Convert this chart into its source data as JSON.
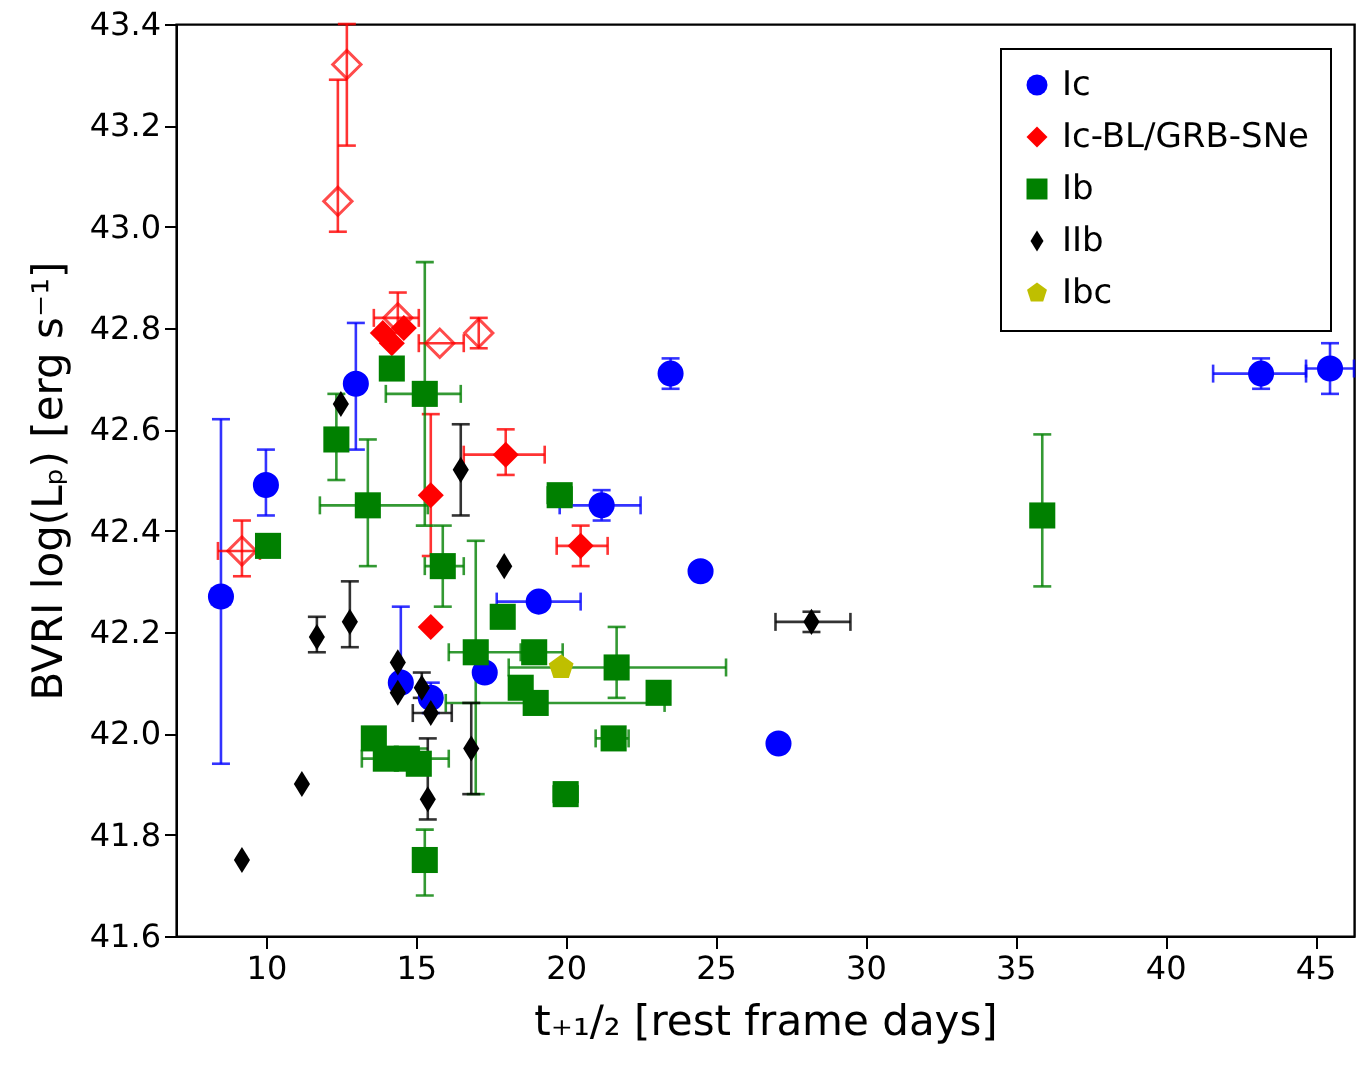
{
  "chart_data": {
    "type": "scatter",
    "xlabel": "t₊₁/₂ [rest frame days]",
    "ylabel": "BVRI log(Lₚ) [erg s⁻¹]",
    "xlim": [
      7,
      46.3
    ],
    "xticks": [
      10,
      15,
      20,
      25,
      30,
      35,
      40,
      45
    ],
    "ylim": [
      41.6,
      43.4
    ],
    "yticks": [
      41.6,
      41.8,
      {
        "value": 42,
        "label": "42.0"
      },
      42.2,
      42.4,
      42.6,
      42.8,
      {
        "value": 43,
        "label": "43.0"
      },
      43.2,
      43.4
    ],
    "grid": false,
    "legend": "top right",
    "series": [
      {
        "name": "Ic",
        "color": "#0000ff",
        "marker": "circle",
        "x": [
          8.5,
          10.0,
          13.0,
          14.5,
          15.5,
          17.3,
          19.1,
          21.2,
          23.5,
          24.5,
          27.1,
          43.2,
          45.5
        ],
        "values": [
          42.27,
          42.49,
          42.69,
          42.1,
          42.07,
          42.12,
          42.26,
          42.45,
          42.71,
          42.32,
          41.98,
          42.71,
          42.72
        ],
        "errors": [
          [
            41.94,
            42.62
          ],
          [
            42.43,
            42.56
          ],
          [
            42.56,
            42.81
          ],
          [
            42.1,
            42.25
          ],
          [
            42.04,
            42.1
          ],
          null,
          null,
          [
            42.42,
            42.48
          ],
          [
            42.68,
            42.74
          ],
          null,
          null,
          [
            42.68,
            42.74
          ],
          [
            42.67,
            42.77
          ]
        ],
        "xerrors": [
          [
            8.2,
            8.8
          ],
          null,
          null,
          null,
          null,
          null,
          [
            17.7,
            20.5
          ],
          [
            19.8,
            22.5
          ],
          null,
          null,
          null,
          [
            41.6,
            44.7
          ],
          [
            44.7,
            46.3
          ]
        ]
      },
      {
        "name": "Ic-BL/GRB-SNe",
        "color": "#ff0000",
        "marker": "diamond",
        "x": [
          13.9,
          14.6,
          14.2,
          15.5,
          18.0,
          20.5,
          15.5
        ],
        "values": [
          42.79,
          42.8,
          42.77,
          42.47,
          42.55,
          42.37,
          42.21
        ],
        "errors": [
          null,
          null,
          null,
          [
            42.35,
            42.63
          ],
          [
            42.51,
            42.6
          ],
          [
            42.33,
            42.41
          ],
          null
        ],
        "xerrors": [
          null,
          null,
          null,
          null,
          [
            16.6,
            19.3
          ],
          [
            19.7,
            21.4
          ],
          null
        ]
      },
      {
        "color": "#ff0000",
        "marker": "diamond",
        "x": [
          12.7,
          12.4,
          14.4,
          15.8,
          17.1,
          9.2
        ],
        "values": [
          43.32,
          43.05,
          42.82,
          42.77,
          42.79,
          42.36
        ],
        "errors": [
          [
            43.16,
            43.4
          ],
          [
            42.99,
            43.29
          ],
          [
            42.79,
            42.87
          ],
          null,
          [
            42.76,
            42.82
          ],
          [
            42.31,
            42.42
          ]
        ],
        "xerrors": [
          null,
          null,
          [
            13.6,
            15.1
          ],
          [
            15.1,
            16.6
          ],
          null,
          [
            8.4,
            9.8
          ]
        ]
      },
      {
        "name": "Ib",
        "color": "#008000",
        "marker": "square",
        "x": [
          12.35,
          14.2,
          15.3,
          13.4,
          10.07,
          15.9,
          17.0,
          17.9,
          18.95,
          18.5,
          19.0,
          21.7,
          23.1,
          21.6,
          20.0,
          19.8,
          13.6,
          14.0,
          14.7,
          15.1,
          15.3,
          35.9
        ],
        "values": [
          42.58,
          42.72,
          42.67,
          42.45,
          42.37,
          42.33,
          42.16,
          42.23,
          42.16,
          42.09,
          42.06,
          42.13,
          42.08,
          41.99,
          41.88,
          42.47,
          41.99,
          41.95,
          41.95,
          41.94,
          41.75,
          42.43
        ],
        "errors": [
          [
            42.5,
            42.67
          ],
          null,
          [
            42.41,
            42.93
          ],
          [
            42.33,
            42.58
          ],
          null,
          [
            42.25,
            42.41
          ],
          [
            41.88,
            42.38
          ],
          null,
          null,
          null,
          null,
          [
            42.07,
            42.21
          ],
          null,
          null,
          null,
          null,
          null,
          null,
          null,
          [
            41.92,
            41.97
          ],
          [
            41.68,
            41.81
          ],
          [
            42.29,
            42.59
          ]
        ],
        "xerrors": [
          null,
          null,
          [
            14.0,
            16.5
          ],
          [
            11.8,
            15.4
          ],
          null,
          [
            15.3,
            16.6
          ],
          [
            16.1,
            18.7
          ],
          null,
          [
            18.5,
            19.9
          ],
          null,
          [
            16.0,
            23.3
          ],
          [
            18.1,
            25.35
          ],
          null,
          [
            21.0,
            22.1
          ],
          [
            19.6,
            20.4
          ],
          [
            19.4,
            20.2
          ],
          null,
          [
            13.2,
            16.1
          ],
          null,
          null,
          null,
          null
        ]
      },
      {
        "name": "IIb",
        "color": "#000000",
        "marker": "diamond",
        "x": [
          9.2,
          11.2,
          11.7,
          12.8,
          12.5,
          14.4,
          14.4,
          15.2,
          15.5,
          15.4,
          16.85,
          16.5,
          17.95,
          28.2
        ],
        "values": [
          41.75,
          41.9,
          42.19,
          42.22,
          42.65,
          42.14,
          42.08,
          42.09,
          42.04,
          41.87,
          41.97,
          42.52,
          42.33,
          42.22
        ],
        "errors": [
          null,
          null,
          [
            42.16,
            42.23
          ],
          [
            42.17,
            42.3
          ],
          null,
          null,
          null,
          [
            42.07,
            42.12
          ],
          null,
          [
            41.83,
            41.99
          ],
          [
            41.88,
            42.06
          ],
          [
            42.43,
            42.61
          ],
          null,
          [
            42.2,
            42.24
          ]
        ],
        "xerrors": [
          null,
          null,
          null,
          null,
          null,
          null,
          null,
          null,
          [
            14.9,
            16.2
          ],
          null,
          null,
          null,
          null,
          [
            27.0,
            29.5
          ]
        ]
      },
      {
        "name": "Ibc",
        "color": "#bfbf00",
        "x": [
          19.85
        ],
        "values": [
          42.13
        ]
      }
    ]
  }
}
